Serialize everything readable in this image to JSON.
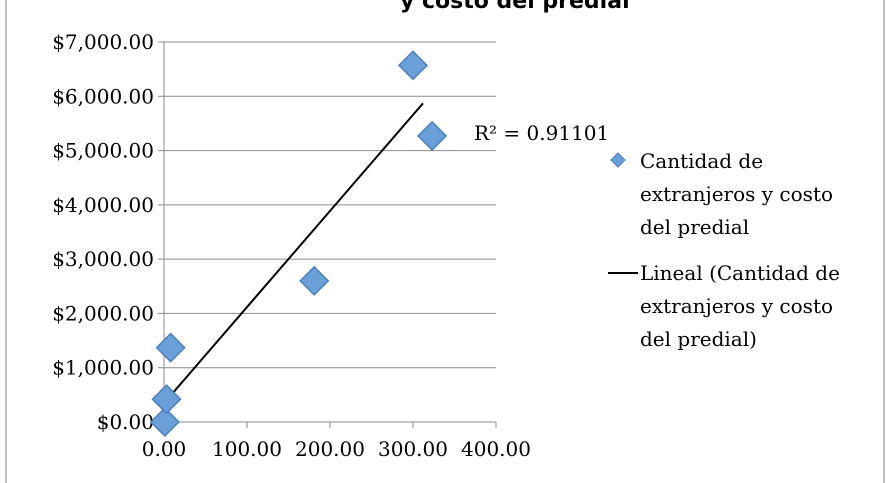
{
  "chart_data": {
    "type": "scatter",
    "title": "... y costo del predial (partial, cropped at top)",
    "xlim": [
      0,
      400
    ],
    "ylim": [
      0,
      7000
    ],
    "x_ticks": [
      {
        "value": 0,
        "label": "0.00"
      },
      {
        "value": 100,
        "label": "100.00"
      },
      {
        "value": 200,
        "label": "200.00"
      },
      {
        "value": 300,
        "label": "300.00"
      },
      {
        "value": 400,
        "label": "400.00"
      }
    ],
    "y_ticks": [
      {
        "value": 0,
        "label": "$0.00"
      },
      {
        "value": 1000,
        "label": "$1,000.00"
      },
      {
        "value": 2000,
        "label": "$2,000.00"
      },
      {
        "value": 3000,
        "label": "$3,000.00"
      },
      {
        "value": 4000,
        "label": "$4,000.00"
      },
      {
        "value": 5000,
        "label": "$5,000.00"
      },
      {
        "value": 6000,
        "label": "$6,000.00"
      },
      {
        "value": 7000,
        "label": "$7,000.00"
      }
    ],
    "grid": "horizontal",
    "series": [
      {
        "name": "Cantidad de extranjeros y costo del predial",
        "kind": "scatter",
        "marker": "diamond",
        "color": "#6a9fd8",
        "points": [
          {
            "x": 1,
            "y": 0
          },
          {
            "x": 3,
            "y": 420
          },
          {
            "x": 8,
            "y": 1370
          },
          {
            "x": 181,
            "y": 2600
          },
          {
            "x": 300,
            "y": 6570
          },
          {
            "x": 323,
            "y": 5270
          }
        ]
      },
      {
        "name": "Lineal (Cantidad de extranjeros y costo del predial)",
        "kind": "line",
        "color": "#000000",
        "points": [
          {
            "x": 3,
            "y": 400
          },
          {
            "x": 312,
            "y": 5870
          }
        ]
      }
    ],
    "r_squared_label": "R² = 0.91101",
    "legend": {
      "placement": "right",
      "entries": [
        {
          "marker": "diamond",
          "lines": [
            "Cantidad de",
            "extranjeros y costo",
            "del predial"
          ]
        },
        {
          "marker": "line",
          "lines": [
            "Lineal (Cantidad de",
            "extranjeros y costo",
            "del predial)"
          ]
        }
      ]
    }
  }
}
